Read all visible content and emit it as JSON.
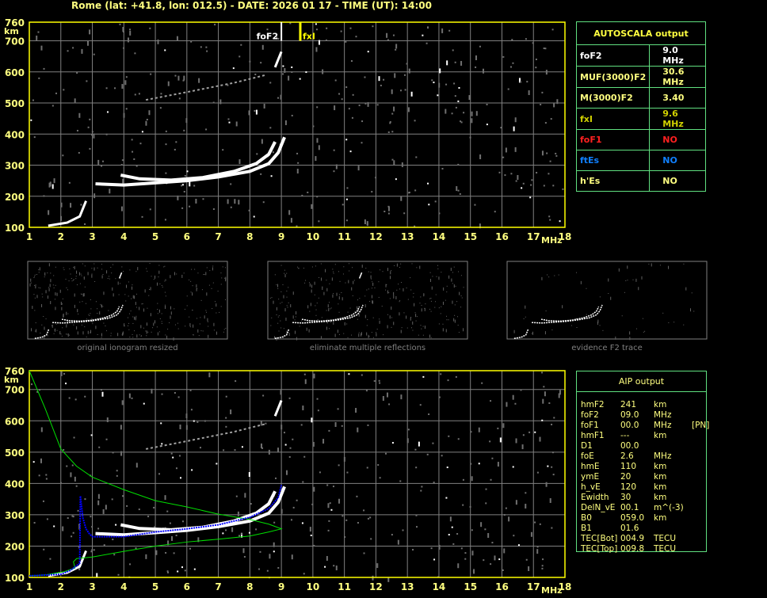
{
  "title": "Rome (lat: +41.8, lon: 012.5) - DATE: 2026 01 17 - TIME (UT): 14:00",
  "colors": {
    "axis": "#ffff00",
    "grid": "#808080",
    "trace": "#ffffff",
    "profile": "#00e000",
    "fit": "#0000ff",
    "table_border": "#60e080"
  },
  "autoscala": {
    "header": "AUTOSCALA output",
    "rows": [
      {
        "label": "foF2",
        "value": "9.0 MHz",
        "color": "#ffffff"
      },
      {
        "label": "MUF(3000)F2",
        "value": "30.6 MHz",
        "color": "#ffff80"
      },
      {
        "label": "M(3000)F2",
        "value": "3.40",
        "color": "#ffff80"
      },
      {
        "label": "fxI",
        "value": "9.6 MHz",
        "color": "#d0d000"
      },
      {
        "label": "foF1",
        "value": "NO",
        "color": "#ff2020"
      },
      {
        "label": "ftEs",
        "value": "NO",
        "color": "#1080ff"
      },
      {
        "label": "h'Es",
        "value": "NO",
        "color": "#ffff80"
      }
    ]
  },
  "aip": {
    "header": "AIP output",
    "rows": [
      [
        "hmF2",
        "241",
        "km",
        ""
      ],
      [
        "foF2",
        "09.0",
        "MHz",
        ""
      ],
      [
        "foF1",
        "00.0",
        "MHz",
        "[PN]"
      ],
      [
        "hmF1",
        "---",
        "km",
        ""
      ],
      [
        "D1",
        "00.0",
        "",
        ""
      ],
      [
        "foE",
        "2.6",
        "MHz",
        ""
      ],
      [
        "hmE",
        "110",
        "km",
        ""
      ],
      [
        "ymE",
        "20",
        "km",
        ""
      ],
      [
        "h_vE",
        "120",
        "km",
        ""
      ],
      [
        "Ewidth",
        "30",
        "km",
        ""
      ],
      [
        "DelN_vE",
        "00.1",
        "m^(-3)",
        ""
      ],
      [
        "B0",
        "059.0",
        "km",
        ""
      ],
      [
        "B1",
        "01.6",
        "",
        ""
      ],
      [
        "TEC[Bot]",
        "004.9",
        "TECU",
        ""
      ],
      [
        "TEC[Top]",
        "009.8",
        "TECU",
        ""
      ]
    ]
  },
  "thumbnails": [
    "original ionogram resized",
    "eliminate multiple reflections",
    "evidence F2 trace"
  ],
  "chart_data": [
    {
      "type": "scatter",
      "xlabel": "MHz",
      "ylabel": "km",
      "xlim": [
        1,
        18
      ],
      "ylim": [
        100,
        760
      ],
      "xticks": [
        1,
        2,
        3,
        4,
        5,
        6,
        7,
        8,
        9,
        10,
        11,
        12,
        13,
        14,
        15,
        16,
        17,
        18
      ],
      "yticks": [
        100,
        200,
        300,
        400,
        500,
        600,
        700,
        760
      ],
      "grid": true,
      "markers": [
        {
          "label": "foF2",
          "x": 9.0
        },
        {
          "label": "fxI",
          "x": 9.6
        }
      ],
      "series": [
        {
          "values": [
            [
              3.1,
              240
            ],
            [
              4,
              236
            ],
            [
              5,
              243
            ],
            [
              6,
              250
            ],
            [
              7,
              262
            ],
            [
              8,
              280
            ],
            [
              8.6,
              305
            ],
            [
              8.9,
              340
            ],
            [
              9.1,
              390
            ]
          ]
        },
        {
          "values": [
            [
              3.9,
              268
            ],
            [
              4.5,
              256
            ],
            [
              5.5,
              252
            ],
            [
              6.5,
              260
            ],
            [
              7.5,
              280
            ],
            [
              8.2,
              305
            ],
            [
              8.6,
              335
            ],
            [
              8.8,
              375
            ]
          ]
        },
        {
          "values": [
            [
              1.6,
              105
            ],
            [
              2.2,
              115
            ],
            [
              2.6,
              135
            ],
            [
              2.8,
              185
            ]
          ]
        },
        {
          "values": [
            [
              4.7,
              510
            ],
            [
              6,
              535
            ],
            [
              7.5,
              565
            ],
            [
              8.5,
              590
            ]
          ]
        },
        {
          "values": [
            [
              8.8,
              615
            ],
            [
              9.0,
              665
            ]
          ]
        }
      ]
    },
    {
      "type": "line",
      "xlabel": "MHz",
      "ylabel": "km",
      "xlim": [
        1,
        18
      ],
      "ylim": [
        100,
        760
      ],
      "xticks": [
        1,
        2,
        3,
        4,
        5,
        6,
        7,
        8,
        9,
        10,
        11,
        12,
        13,
        14,
        15,
        16,
        17,
        18
      ],
      "yticks": [
        100,
        200,
        300,
        400,
        500,
        600,
        700,
        760
      ],
      "grid": true,
      "series": [
        {
          "values": [
            [
              3.1,
              240
            ],
            [
              4,
              236
            ],
            [
              5,
              243
            ],
            [
              6,
              250
            ],
            [
              7,
              262
            ],
            [
              8,
              280
            ],
            [
              8.6,
              305
            ],
            [
              8.9,
              340
            ],
            [
              9.1,
              390
            ]
          ]
        },
        {
          "values": [
            [
              3.9,
              268
            ],
            [
              4.5,
              256
            ],
            [
              5.5,
              252
            ],
            [
              6.5,
              260
            ],
            [
              7.5,
              280
            ],
            [
              8.2,
              305
            ],
            [
              8.6,
              335
            ],
            [
              8.8,
              375
            ]
          ]
        },
        {
          "values": [
            [
              1.6,
              105
            ],
            [
              2.2,
              115
            ],
            [
              2.6,
              135
            ],
            [
              2.8,
              185
            ]
          ]
        },
        {
          "values": [
            [
              4.7,
              510
            ],
            [
              6,
              535
            ],
            [
              7.5,
              565
            ],
            [
              8.5,
              590
            ]
          ]
        },
        {
          "values": [
            [
              8.8,
              615
            ],
            [
              9.0,
              665
            ]
          ]
        },
        {
          "values": [
            [
              1,
              760
            ],
            [
              1.5,
              640
            ],
            [
              2,
              510
            ],
            [
              2.5,
              455
            ],
            [
              3,
              420
            ],
            [
              4,
              380
            ],
            [
              5,
              345
            ],
            [
              6,
              325
            ],
            [
              7,
              302
            ],
            [
              8,
              285
            ],
            [
              8.6,
              270
            ],
            [
              9,
              255
            ],
            [
              8.6,
              245
            ],
            [
              8,
              232
            ],
            [
              7,
              222
            ],
            [
              6,
              213
            ],
            [
              5,
              200
            ],
            [
              4,
              183
            ],
            [
              3,
              165
            ],
            [
              2.5,
              160
            ],
            [
              2.4,
              150
            ],
            [
              2.45,
              130
            ],
            [
              2.1,
              118
            ],
            [
              1.5,
              108
            ],
            [
              1,
              105
            ]
          ]
        },
        {
          "values": [
            [
              1,
              105
            ],
            [
              1.6,
              108
            ],
            [
              2,
              110
            ],
            [
              2.3,
              122
            ],
            [
              2.6,
              145
            ],
            [
              2.62,
              360
            ],
            [
              2.7,
              290
            ],
            [
              2.8,
              255
            ],
            [
              2.9,
              240
            ],
            [
              3,
              230
            ],
            [
              4,
              230
            ],
            [
              5,
              245
            ],
            [
              6,
              255
            ],
            [
              7,
              268
            ],
            [
              8,
              292
            ],
            [
              8.6,
              320
            ],
            [
              8.9,
              355
            ],
            [
              9,
              395
            ]
          ]
        }
      ]
    }
  ]
}
